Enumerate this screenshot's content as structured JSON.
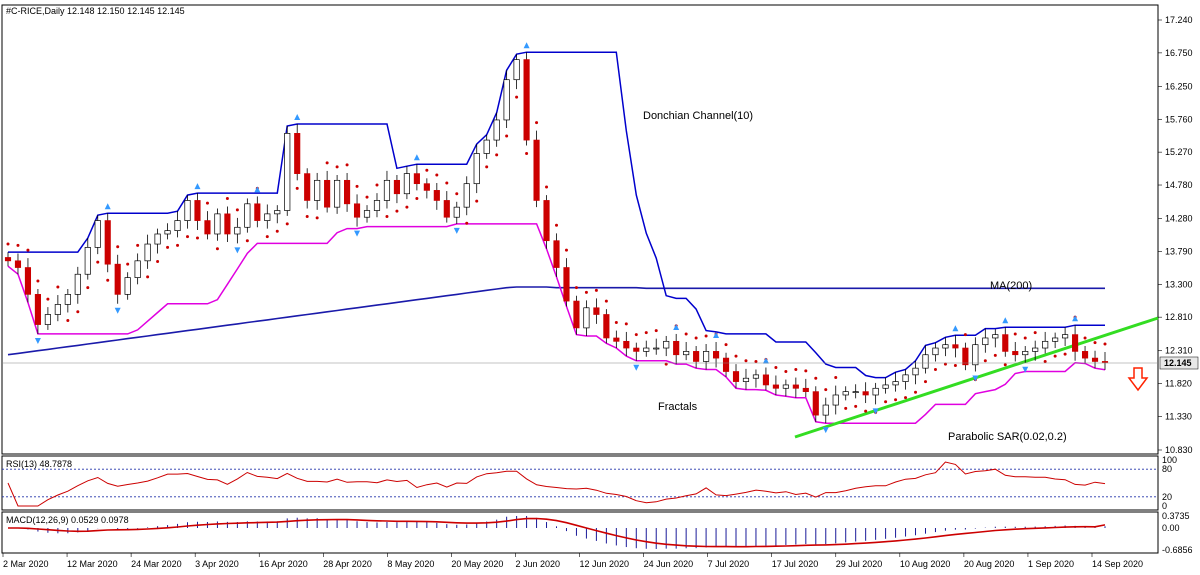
{
  "header": {
    "symbol_line": "#C-RICE,Daily  12.148 12.150 12.145 12.145"
  },
  "chart_data": {
    "type": "candlestick",
    "symbol": "#C-RICE",
    "timeframe": "Daily",
    "last_price": "12.145",
    "price_axis_ticks": [
      "17.240",
      "16.750",
      "16.250",
      "15.760",
      "15.270",
      "14.780",
      "14.280",
      "13.790",
      "13.300",
      "12.810",
      "12.310",
      "11.820",
      "11.330",
      "10.830"
    ],
    "price_range": [
      10.83,
      17.24
    ],
    "x_labels": [
      "2 Mar 2020",
      "12 Mar 2020",
      "24 Mar 2020",
      "3 Apr 2020",
      "16 Apr 2020",
      "28 Apr 2020",
      "8 May 2020",
      "20 May 2020",
      "2 Jun 2020",
      "12 Jun 2020",
      "24 Jun 2020",
      "7 Jul 2020",
      "17 Jul 2020",
      "29 Jul 2020",
      "10 Aug 2020",
      "20 Aug 2020",
      "1 Sep 2020",
      "14 Sep 2020"
    ],
    "series": [
      {
        "name": "Close",
        "values": [
          13.65,
          13.55,
          13.15,
          12.7,
          12.85,
          13.0,
          13.15,
          13.45,
          13.85,
          14.25,
          13.6,
          13.15,
          13.4,
          13.65,
          13.9,
          14.05,
          14.1,
          14.25,
          14.55,
          14.25,
          14.05,
          14.35,
          14.05,
          14.15,
          14.5,
          14.25,
          14.35,
          14.4,
          15.55,
          14.95,
          14.55,
          14.85,
          14.45,
          14.85,
          14.5,
          14.3,
          14.4,
          14.55,
          14.85,
          14.65,
          14.95,
          14.8,
          14.7,
          14.55,
          14.3,
          14.45,
          14.8,
          15.25,
          15.45,
          15.75,
          16.35,
          16.65,
          15.45,
          14.55,
          13.95,
          13.55,
          13.05,
          12.65,
          12.95,
          12.85,
          12.5,
          12.45,
          12.35,
          12.3,
          12.35,
          12.35,
          12.45,
          12.25,
          12.3,
          12.15,
          12.3,
          12.2,
          12.0,
          11.85,
          11.9,
          11.95,
          11.8,
          11.75,
          11.8,
          11.75,
          11.7,
          11.35,
          11.5,
          11.65,
          11.7,
          11.7,
          11.65,
          11.75,
          11.8,
          11.85,
          11.95,
          12.05,
          12.25,
          12.35,
          12.4,
          12.35,
          12.1,
          12.4,
          12.5,
          12.55,
          12.3,
          12.25,
          12.3,
          12.35,
          12.45,
          12.5,
          12.55,
          12.3,
          12.2,
          12.15,
          12.145
        ]
      },
      {
        "name": "MA(200)",
        "values": [
          12.25,
          12.27,
          12.29,
          12.31,
          12.33,
          12.35,
          12.37,
          12.39,
          12.41,
          12.43,
          12.45,
          12.47,
          12.49,
          12.51,
          12.53,
          12.55,
          12.57,
          12.59,
          12.61,
          12.63,
          12.65,
          12.67,
          12.69,
          12.71,
          12.73,
          12.75,
          12.77,
          12.79,
          12.81,
          12.83,
          12.85,
          12.87,
          12.89,
          12.91,
          12.93,
          12.95,
          12.97,
          12.99,
          13.01,
          13.03,
          13.05,
          13.07,
          13.09,
          13.11,
          13.13,
          13.15,
          13.17,
          13.19,
          13.21,
          13.23,
          13.25,
          13.26,
          13.26,
          13.26,
          13.26,
          13.25,
          13.25,
          13.25,
          13.25,
          13.25,
          13.25,
          13.25,
          13.25,
          13.25,
          13.24,
          13.24,
          13.24,
          13.24,
          13.24,
          13.24,
          13.24,
          13.24,
          13.24,
          13.24,
          13.24,
          13.24,
          13.24,
          13.24,
          13.24,
          13.24,
          13.24,
          13.24,
          13.24,
          13.24,
          13.24,
          13.24,
          13.24,
          13.24,
          13.24,
          13.24,
          13.24,
          13.24,
          13.24,
          13.24,
          13.24,
          13.24,
          13.24,
          13.24,
          13.24,
          13.24,
          13.24,
          13.24,
          13.24,
          13.24,
          13.24,
          13.24,
          13.24,
          13.24,
          13.24,
          13.24,
          13.24
        ]
      }
    ]
  },
  "annotations": {
    "donchian": "Donchian Channel(10)",
    "ma": "MA(200)",
    "fractals": "Fractals",
    "psar": "Parabolic SAR(0.02,0.2)"
  },
  "rsi": {
    "label": "RSI(13) 48.7878",
    "ticks": [
      "100",
      "80",
      "20",
      "0"
    ],
    "levels": [
      80,
      20
    ],
    "value": 48.7878
  },
  "macd": {
    "label": "MACD(12,26,9) 0.0529 0.0978",
    "ticks": [
      "0.3735",
      "0.00",
      "-0.6856"
    ],
    "main": 0.0529,
    "signal": 0.0978
  },
  "colors": {
    "up_candle": "#ffffff",
    "down_candle": "#cc0000",
    "donchian": "#0000cc",
    "lower_band": "#e000e0",
    "ma200": "#1a1aaa",
    "trendline": "#33dd22",
    "psar": "#cc0000",
    "fractal": "#3399ff",
    "arrow": "#ff2200",
    "last_price_bg": "#e8e8e8"
  }
}
